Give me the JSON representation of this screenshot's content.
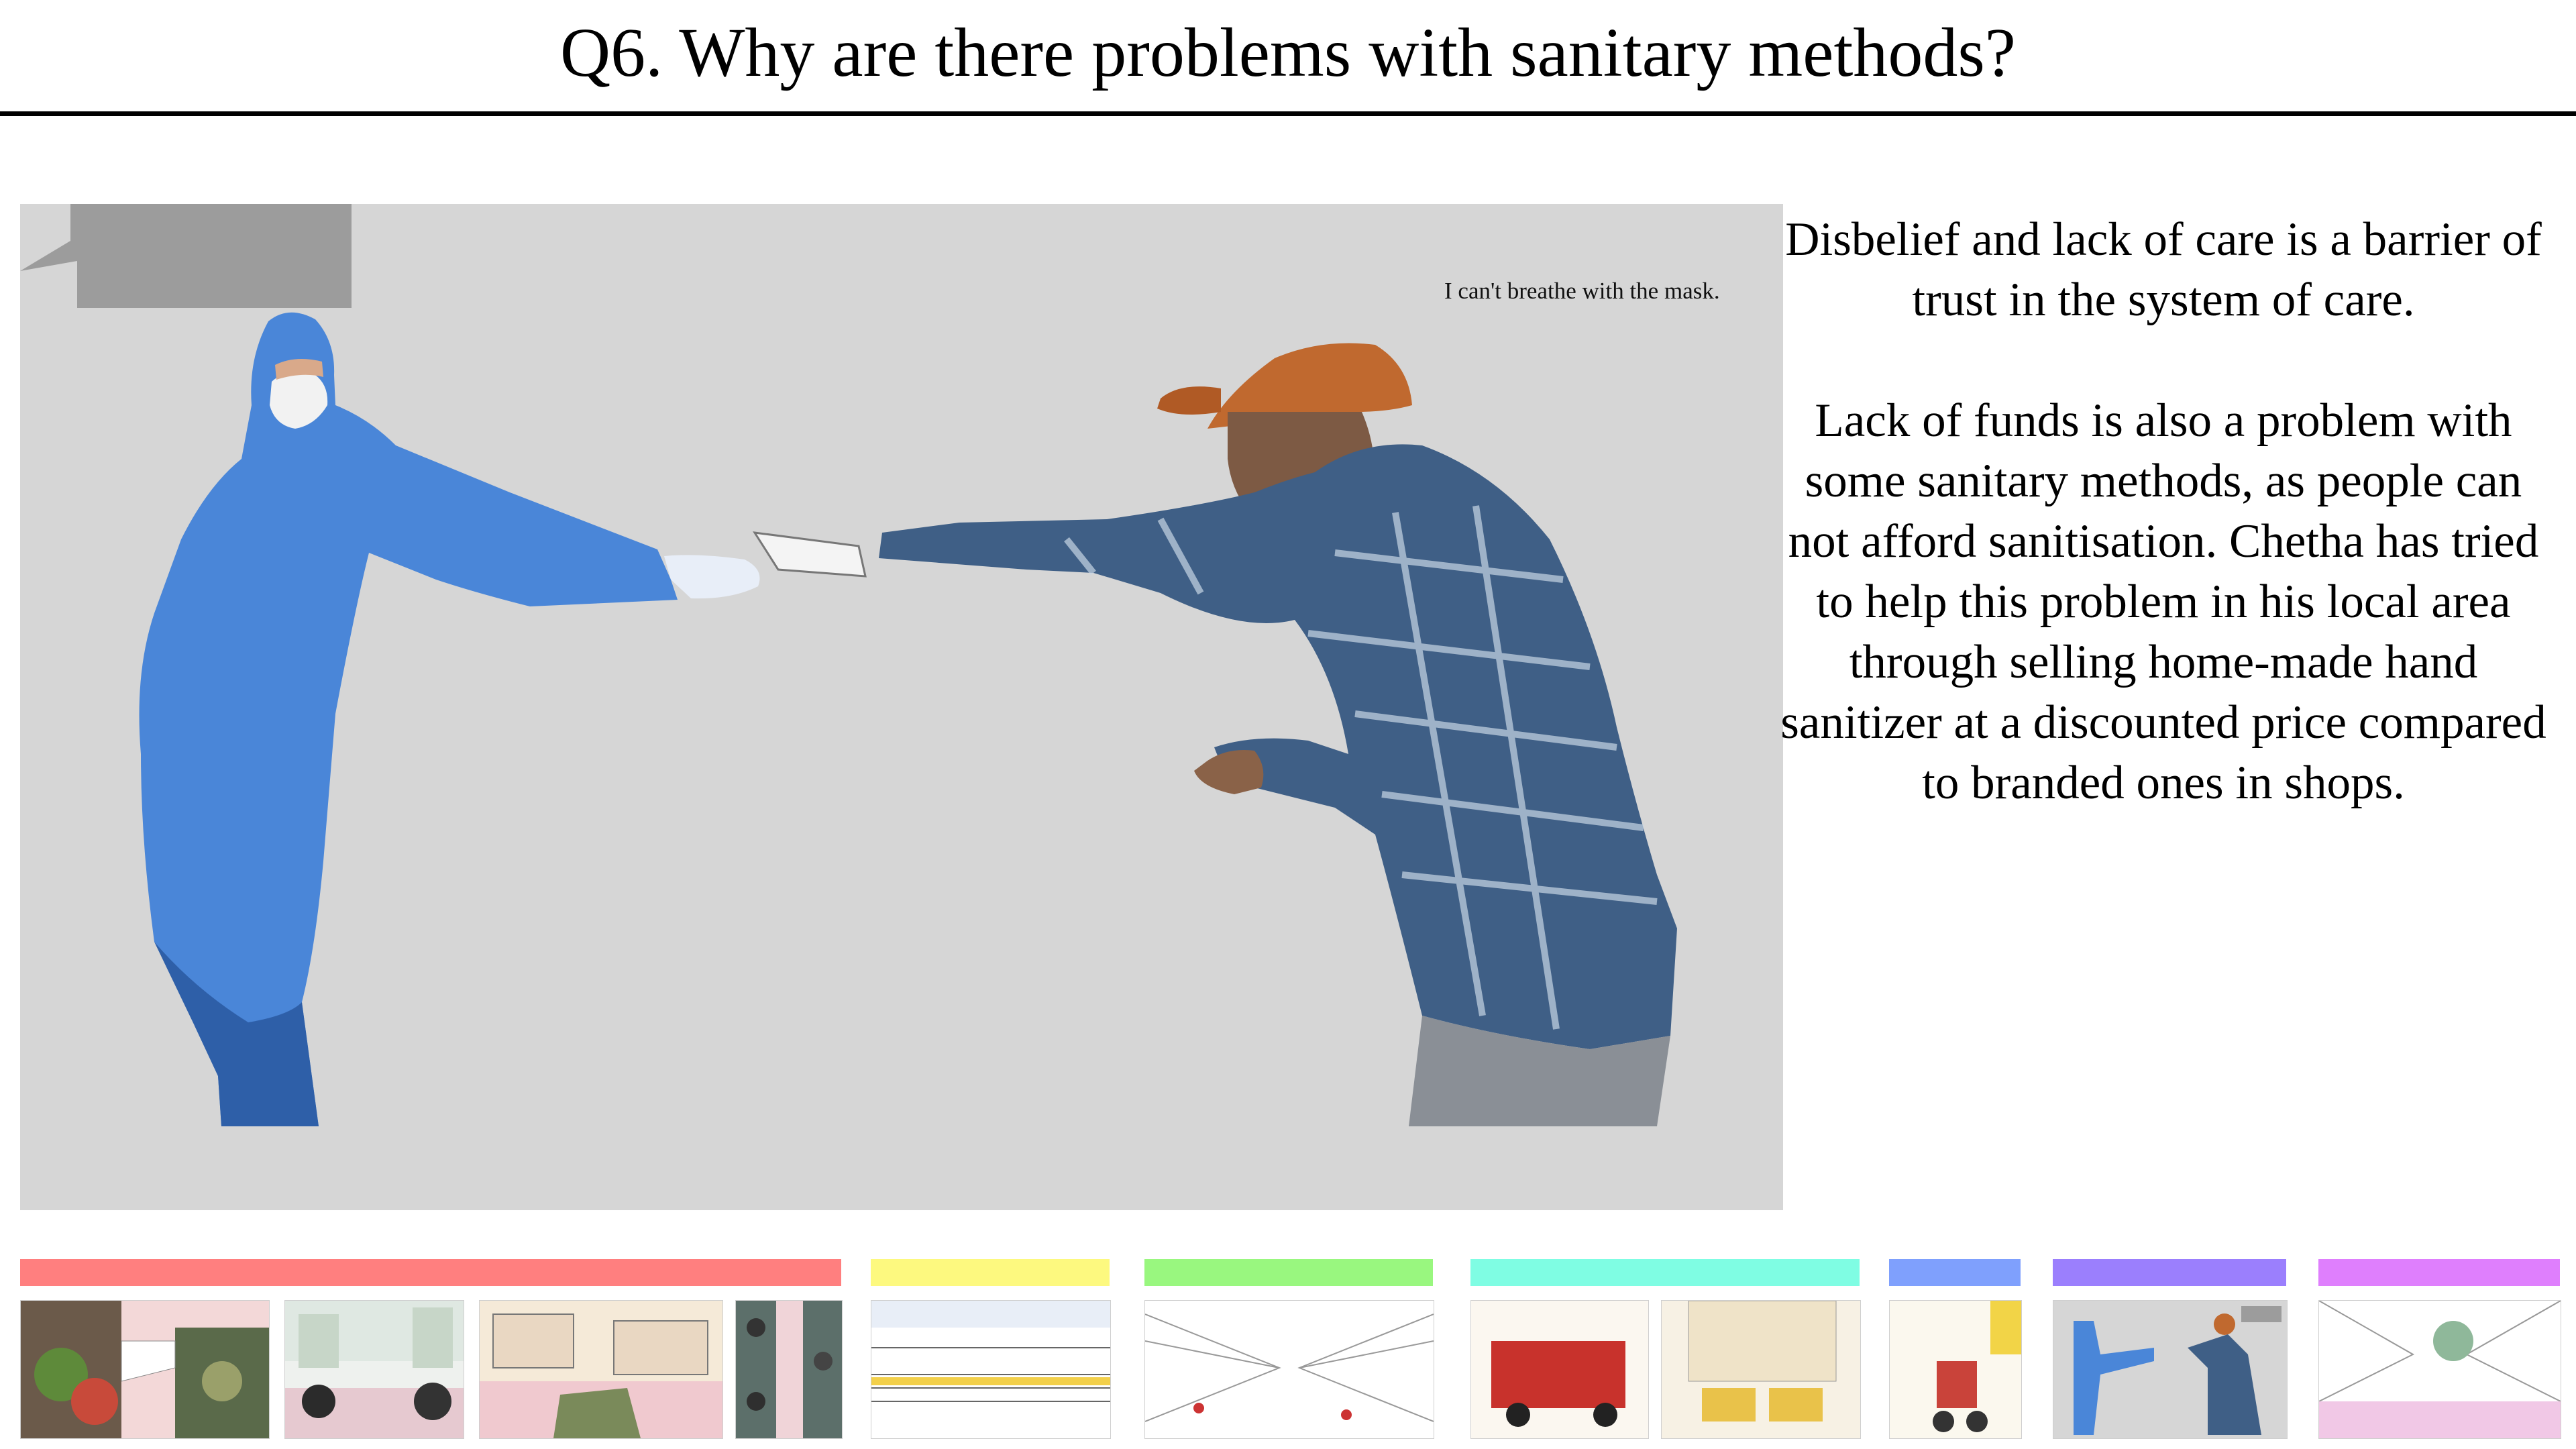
{
  "slide": {
    "title": "Q6. Why are there problems with sanitary methods?",
    "speech_bubble": "I can't breathe with the mask.",
    "paragraphs": [
      "Disbelief and lack of care is a barrier of trust in the system of care.",
      "Lack of funds is also a problem with some sanitary methods, as people can not afford sanitisation. Chetha has tried to help this problem in his local area through selling home-made hand sanitizer at a discounted price compared to branded ones in shops."
    ]
  },
  "timeline": {
    "sections": [
      {
        "color": "#ff7f7f",
        "thumbnails": [
          "market-scene",
          "street-motorbikes",
          "market-stalls",
          "aerial-crowd"
        ]
      },
      {
        "color": "#fdf97f",
        "thumbnails": [
          "shop-facade-sketch"
        ]
      },
      {
        "color": "#99f77f",
        "thumbnails": [
          "street-perspective-sketch"
        ]
      },
      {
        "color": "#7ffde3",
        "thumbnails": [
          "red-tuktuk",
          "tuktuks-corner"
        ]
      },
      {
        "color": "#7fa0fd",
        "thumbnails": [
          "motorbike-rider"
        ]
      },
      {
        "color": "#9b7ffd",
        "thumbnails": [
          "mask-handover"
        ]
      },
      {
        "color": "#df7ffd",
        "thumbnails": [
          "street-green-sketch"
        ]
      }
    ]
  },
  "colors": {
    "scene_background": "#d6d6d6",
    "bubble": "#9c9c9c",
    "ppe_suit": "#4a86d8",
    "cap": "#c0692f"
  }
}
